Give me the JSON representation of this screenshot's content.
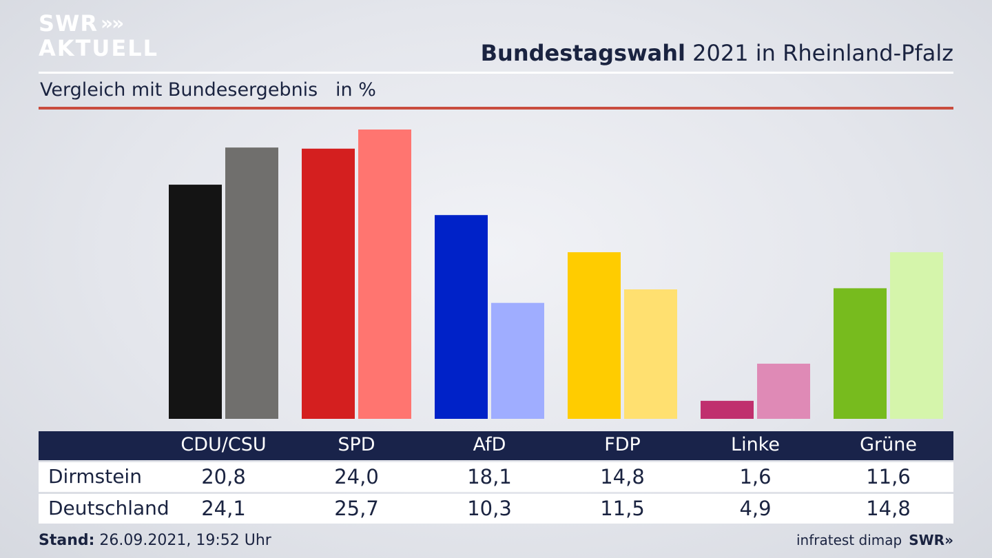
{
  "brand": {
    "logo_line1": "SWR",
    "logo_line2": "AKTUELL",
    "logo_chevrons": "»"
  },
  "header": {
    "title_bold": "Bundestagswahl",
    "title_rest": "2021 in Rheinland-Pfalz"
  },
  "subtitle": {
    "text": "Vergleich mit Bundesergebnis",
    "unit": "in %"
  },
  "footer": {
    "stand_label": "Stand:",
    "stand_value": "26.09.2021, 19:52 Uhr",
    "source": "infratest dimap",
    "swr": "SWR»"
  },
  "chart_data": {
    "type": "bar",
    "categories": [
      "CDU/CSU",
      "SPD",
      "AfD",
      "FDP",
      "Linke",
      "Grüne"
    ],
    "series": [
      {
        "name": "Dirmstein",
        "values": [
          20.8,
          24.0,
          18.1,
          14.8,
          1.6,
          11.6
        ],
        "display": [
          "20,8",
          "24,0",
          "18,1",
          "14,8",
          "1,6",
          "11,6"
        ]
      },
      {
        "name": "Deutschland",
        "values": [
          24.1,
          25.7,
          10.3,
          11.5,
          4.9,
          14.8
        ],
        "display": [
          "24,1",
          "25,7",
          "10,3",
          "11,5",
          "4,9",
          "14,8"
        ]
      }
    ],
    "colors": {
      "Dirmstein": [
        "#141414",
        "#d41f1f",
        "#0022c8",
        "#ffcc00",
        "#c0306e",
        "#77bb1e"
      ],
      "Deutschland": [
        "#706f6d",
        "#ff7570",
        "#9fadff",
        "#ffe070",
        "#df8ab6",
        "#d5f5ab"
      ]
    },
    "ylim": [
      0,
      25.7
    ],
    "grid": false,
    "legend": "table-below"
  }
}
